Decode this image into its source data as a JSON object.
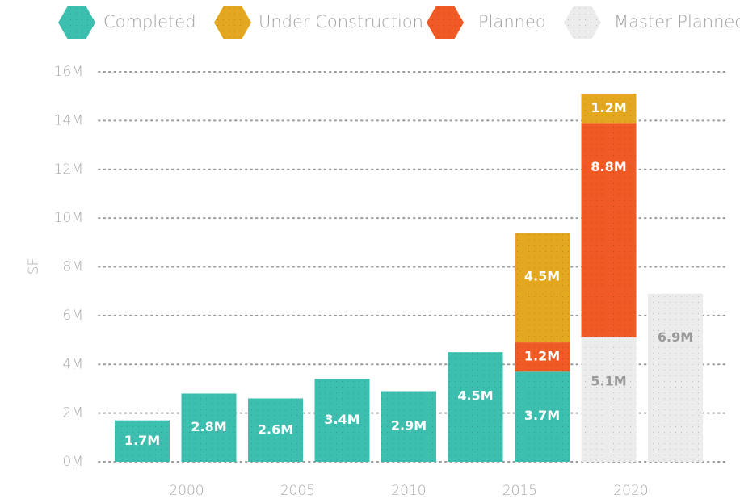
{
  "chart_data": {
    "type": "stacked-bar",
    "y_label": "SF",
    "x": [
      1998,
      2001,
      2004,
      2007,
      2010,
      2013,
      2016,
      2019,
      2022
    ],
    "xlim": [
      1996,
      2024
    ],
    "xticks": [
      2000,
      2005,
      2010,
      2015,
      2020
    ],
    "ylim": [
      0,
      16
    ],
    "yticks": [
      {
        "value": 0,
        "label": "0M"
      },
      {
        "value": 2,
        "label": "2M"
      },
      {
        "value": 4,
        "label": "4M"
      },
      {
        "value": 6,
        "label": "6M"
      },
      {
        "value": 8,
        "label": "8M"
      },
      {
        "value": 10,
        "label": "10M"
      },
      {
        "value": 12,
        "label": "12M"
      },
      {
        "value": 14,
        "label": "14M"
      },
      {
        "value": 16,
        "label": "16M"
      }
    ],
    "grid": true,
    "legend": "top",
    "series": [
      {
        "name": "Completed",
        "color": "#3dbfb0",
        "label_color": "#ffffff",
        "values": [
          1.7,
          2.8,
          2.6,
          3.4,
          2.9,
          4.5,
          3.7,
          null,
          null
        ],
        "value_labels": [
          "1.7M",
          "2.8M",
          "2.6M",
          "3.4M",
          "2.9M",
          "4.5M",
          "3.7M",
          null,
          null
        ]
      },
      {
        "name": "Under Construction",
        "color": "#e3a81f",
        "label_color": "#ffffff",
        "values": [
          null,
          null,
          null,
          null,
          null,
          null,
          4.5,
          1.2,
          null
        ],
        "value_labels": [
          null,
          null,
          null,
          null,
          null,
          null,
          "4.5M",
          "1.2M",
          null
        ]
      },
      {
        "name": "Planned",
        "color": "#f05a24",
        "label_color": "#ffffff",
        "values": [
          null,
          null,
          null,
          null,
          null,
          null,
          1.2,
          8.8,
          null
        ],
        "value_labels": [
          null,
          null,
          null,
          null,
          null,
          null,
          "1.2M",
          "8.8M",
          null
        ]
      },
      {
        "name": "Master Planned",
        "color": "#ececec",
        "label_color": "#9a9a9a",
        "values": [
          null,
          null,
          null,
          null,
          null,
          null,
          null,
          5.1,
          6.9
        ],
        "value_labels": [
          null,
          null,
          null,
          null,
          null,
          null,
          null,
          "5.1M",
          "6.9M"
        ]
      }
    ]
  }
}
